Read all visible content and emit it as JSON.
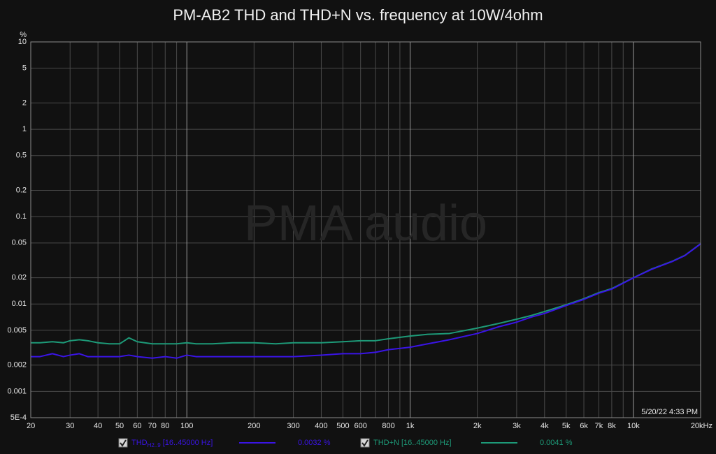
{
  "chart_data": {
    "type": "line",
    "title": "PM-AB2 THD and THD+N vs. frequency at 10W/4ohm",
    "watermark": "PMA audio",
    "timestamp": "5/20/22 4:33 PM",
    "y_label": "%",
    "xscale": "log",
    "yscale": "log",
    "grid": true,
    "xlim": [
      20,
      20000
    ],
    "ylim": [
      0.0005,
      10
    ],
    "xticks": [
      20,
      30,
      40,
      50,
      60,
      70,
      80,
      100,
      200,
      300,
      400,
      500,
      600,
      800,
      {
        "value": 1000,
        "label": "1k"
      },
      {
        "value": 2000,
        "label": "2k"
      },
      {
        "value": 3000,
        "label": "3k"
      },
      {
        "value": 4000,
        "label": "4k"
      },
      {
        "value": 5000,
        "label": "5k"
      },
      {
        "value": 6000,
        "label": "6k"
      },
      {
        "value": 7000,
        "label": "7k"
      },
      {
        "value": 8000,
        "label": "8k"
      },
      {
        "value": 10000,
        "label": "10k"
      },
      {
        "value": 20000,
        "label": "20kHz"
      }
    ],
    "xminorticks": [
      90,
      700,
      900,
      9000
    ],
    "yticks": [
      10,
      5,
      2,
      1,
      0.5,
      0.2,
      0.1,
      0.05,
      0.02,
      0.01,
      0.005,
      0.002,
      0.001,
      {
        "value": 0.0005,
        "label": "5E-4"
      }
    ],
    "x": [
      20,
      22,
      25,
      28,
      30,
      33,
      36,
      40,
      45,
      50,
      55,
      60,
      70,
      80,
      90,
      100,
      110,
      130,
      160,
      200,
      250,
      300,
      400,
      500,
      600,
      700,
      800,
      1000,
      1200,
      1500,
      2000,
      2500,
      3000,
      3500,
      4000,
      5000,
      6000,
      7000,
      8000,
      10000,
      12000,
      15000,
      17000,
      20000
    ],
    "series": [
      {
        "name": "THD",
        "name_sub": "H2..9",
        "range": "[16..45000 Hz]",
        "reading": "0.0032 %",
        "color": "#3a14e6",
        "values": [
          0.0025,
          0.0025,
          0.0027,
          0.0025,
          0.0026,
          0.0027,
          0.0025,
          0.0025,
          0.0025,
          0.0025,
          0.0026,
          0.0025,
          0.0024,
          0.0025,
          0.0024,
          0.0026,
          0.0025,
          0.0025,
          0.0025,
          0.0025,
          0.0025,
          0.0025,
          0.0026,
          0.0027,
          0.0027,
          0.0028,
          0.003,
          0.0032,
          0.0035,
          0.0039,
          0.0046,
          0.0055,
          0.0062,
          0.0071,
          0.0078,
          0.0096,
          0.0113,
          0.0133,
          0.0148,
          0.0199,
          0.0248,
          0.0308,
          0.0358,
          0.0488
        ]
      },
      {
        "name": "THD+N",
        "range": "[16..45000 Hz]",
        "reading": "0.0041 %",
        "color": "#1d9a78",
        "values": [
          0.0036,
          0.0036,
          0.0037,
          0.0036,
          0.0038,
          0.0039,
          0.0038,
          0.0036,
          0.0035,
          0.0035,
          0.0041,
          0.0037,
          0.0035,
          0.0035,
          0.0035,
          0.0036,
          0.0035,
          0.0035,
          0.0036,
          0.0036,
          0.0035,
          0.0036,
          0.0036,
          0.0037,
          0.0038,
          0.0038,
          0.004,
          0.0043,
          0.0045,
          0.0046,
          0.0053,
          0.006,
          0.0067,
          0.0074,
          0.0082,
          0.0098,
          0.0115,
          0.0135,
          0.015,
          0.02,
          0.025,
          0.031,
          0.036,
          0.049
        ]
      }
    ]
  }
}
